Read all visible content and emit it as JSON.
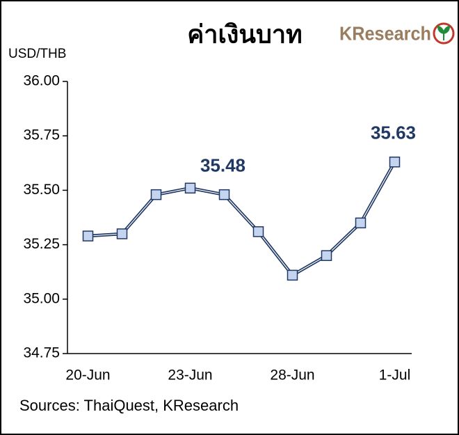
{
  "chart_data": {
    "type": "line",
    "title": "ค่าเงินบาท",
    "logo": "KResearch",
    "y_label": "USD/THB",
    "categories": [
      "20-Jun",
      null,
      null,
      "23-Jun",
      null,
      null,
      "28-Jun",
      null,
      null,
      "1-Jul"
    ],
    "values": [
      35.29,
      35.3,
      35.48,
      35.51,
      35.48,
      35.31,
      35.11,
      35.2,
      35.35,
      35.63
    ],
    "value_labels": [
      null,
      null,
      null,
      null,
      "35.48",
      null,
      null,
      null,
      null,
      "35.63"
    ],
    "color": "#1f3864",
    "marker_color": "#c5d5ef",
    "ylim": [
      34.75,
      36
    ],
    "yticks": [
      34.75,
      {
        "value": 35,
        "label": "35.00"
      },
      35.25,
      {
        "value": 35.5,
        "label": "35.50"
      },
      35.75,
      {
        "value": 36,
        "label": "36.00"
      }
    ],
    "source": "Sources: ThaiQuest, KResearch"
  }
}
